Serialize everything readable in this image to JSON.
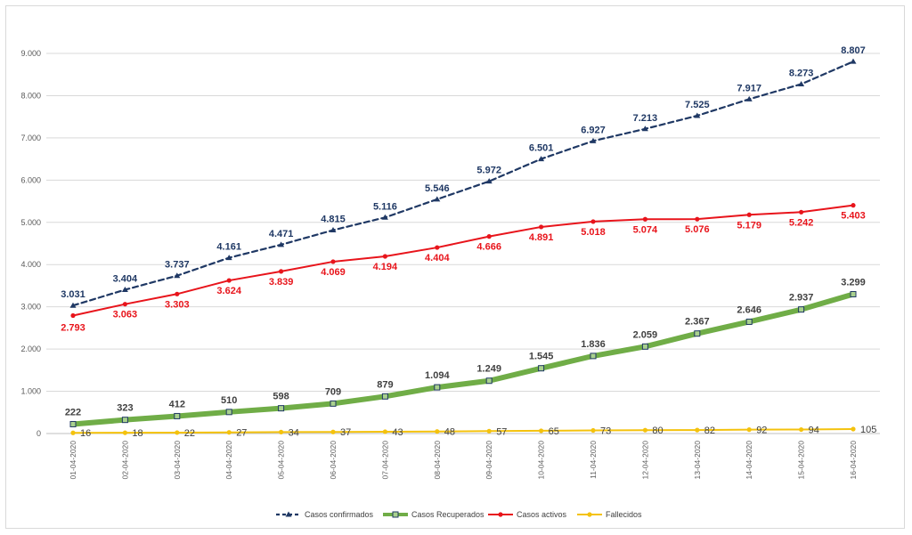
{
  "chart_data": {
    "type": "line",
    "categories": [
      "01-04-2020",
      "02-04-2020",
      "03-04-2020",
      "04-04-2020",
      "05-04-2020",
      "06-04-2020",
      "07-04-2020",
      "08-04-2020",
      "09-04-2020",
      "10-04-2020",
      "11-04-2020",
      "12-04-2020",
      "13-04-2020",
      "14-04-2020",
      "15-04-2020",
      "16-04-2020"
    ],
    "ylim": [
      0,
      9000
    ],
    "yticks": [
      0,
      1000,
      2000,
      3000,
      4000,
      5000,
      6000,
      7000,
      8000,
      9000
    ],
    "ytick_labels": [
      "0",
      "1.000",
      "2.000",
      "3.000",
      "4.000",
      "5.000",
      "6.000",
      "7.000",
      "8.000",
      "9.000"
    ],
    "grid": true,
    "legend_position": "bottom",
    "series": [
      {
        "name": "Casos confirmados",
        "color": "#1f3864",
        "style": "dashed",
        "marker": "triangle",
        "values": [
          3031,
          3404,
          3737,
          4161,
          4471,
          4815,
          5116,
          5546,
          5972,
          6501,
          6927,
          7213,
          7525,
          7917,
          8273,
          8807
        ],
        "labels": [
          "3.031",
          "3.404",
          "3.737",
          "4.161",
          "4.471",
          "4.815",
          "5.116",
          "5.546",
          "5.972",
          "6.501",
          "6.927",
          "7.213",
          "7.525",
          "7.917",
          "8.273",
          "8.807"
        ]
      },
      {
        "name": "Casos Recuperados",
        "color": "#70ad47",
        "style": "thick",
        "marker": "square",
        "values": [
          222,
          323,
          412,
          510,
          598,
          709,
          879,
          1094,
          1249,
          1545,
          1836,
          2059,
          2367,
          2646,
          2937,
          3299
        ],
        "labels": [
          "222",
          "323",
          "412",
          "510",
          "598",
          "709",
          "879",
          "1.094",
          "1.249",
          "1.545",
          "1.836",
          "2.059",
          "2.367",
          "2.646",
          "2.937",
          "3.299"
        ]
      },
      {
        "name": "Casos activos",
        "color": "#e8141b",
        "style": "solid",
        "marker": "dot",
        "values": [
          2793,
          3063,
          3303,
          3624,
          3839,
          4069,
          4194,
          4404,
          4666,
          4891,
          5018,
          5074,
          5076,
          5179,
          5242,
          5403
        ],
        "labels": [
          "2.793",
          "3.063",
          "3.303",
          "3.624",
          "3.839",
          "4.069",
          "4.194",
          "4.404",
          "4.666",
          "4.891",
          "5.018",
          "5.074",
          "5.076",
          "5.179",
          "5.242",
          "5.403"
        ]
      },
      {
        "name": "Fallecidos",
        "color": "#f4c20d",
        "style": "solid",
        "marker": "dot",
        "values": [
          16,
          18,
          22,
          27,
          34,
          37,
          43,
          48,
          57,
          65,
          73,
          80,
          82,
          92,
          94,
          105
        ],
        "labels": [
          "16",
          "18",
          "22",
          "27",
          "34",
          "37",
          "43",
          "48",
          "57",
          "65",
          "73",
          "80",
          "82",
          "92",
          "94",
          "105"
        ]
      }
    ]
  }
}
